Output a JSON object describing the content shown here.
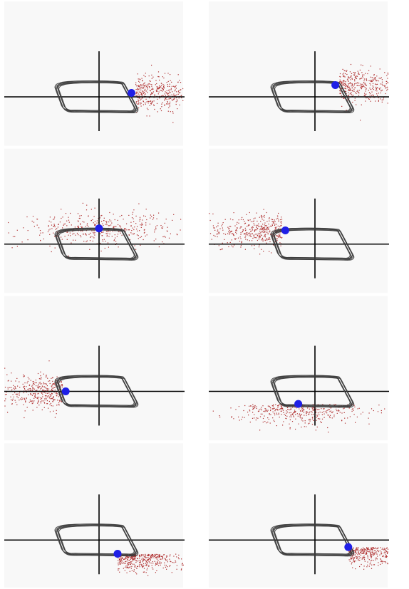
{
  "figure": {
    "layout": {
      "rows": 4,
      "columns": 2
    },
    "colors": {
      "background": "#ffffff",
      "panel_background": "#f8f8f8",
      "axes": "#000000",
      "limit_cycle": "#3a3a3a",
      "point_cloud": "#b03030",
      "current_state": "#1f1fe6"
    },
    "panels": [
      {
        "id": "panel-1",
        "cloud_direction": "right",
        "marker": {
          "x": 0.35,
          "y": 0.1
        }
      },
      {
        "id": "panel-2",
        "cloud_direction": "right",
        "marker": {
          "x": 0.22,
          "y": 0.3
        }
      },
      {
        "id": "panel-3",
        "cloud_direction": "both",
        "marker": {
          "x": 0.0,
          "y": 0.4
        }
      },
      {
        "id": "panel-4",
        "cloud_direction": "left",
        "marker": {
          "x": -0.32,
          "y": 0.35
        }
      },
      {
        "id": "panel-5",
        "cloud_direction": "left",
        "marker": {
          "x": -0.36,
          "y": 0.0
        }
      },
      {
        "id": "panel-6",
        "cloud_direction": "down",
        "marker": {
          "x": -0.18,
          "y": -0.32
        }
      },
      {
        "id": "panel-7",
        "cloud_direction": "right-down",
        "marker": {
          "x": 0.2,
          "y": -0.35
        }
      },
      {
        "id": "panel-8",
        "cloud_direction": "right-down",
        "marker": {
          "x": 0.36,
          "y": -0.18
        }
      }
    ]
  }
}
